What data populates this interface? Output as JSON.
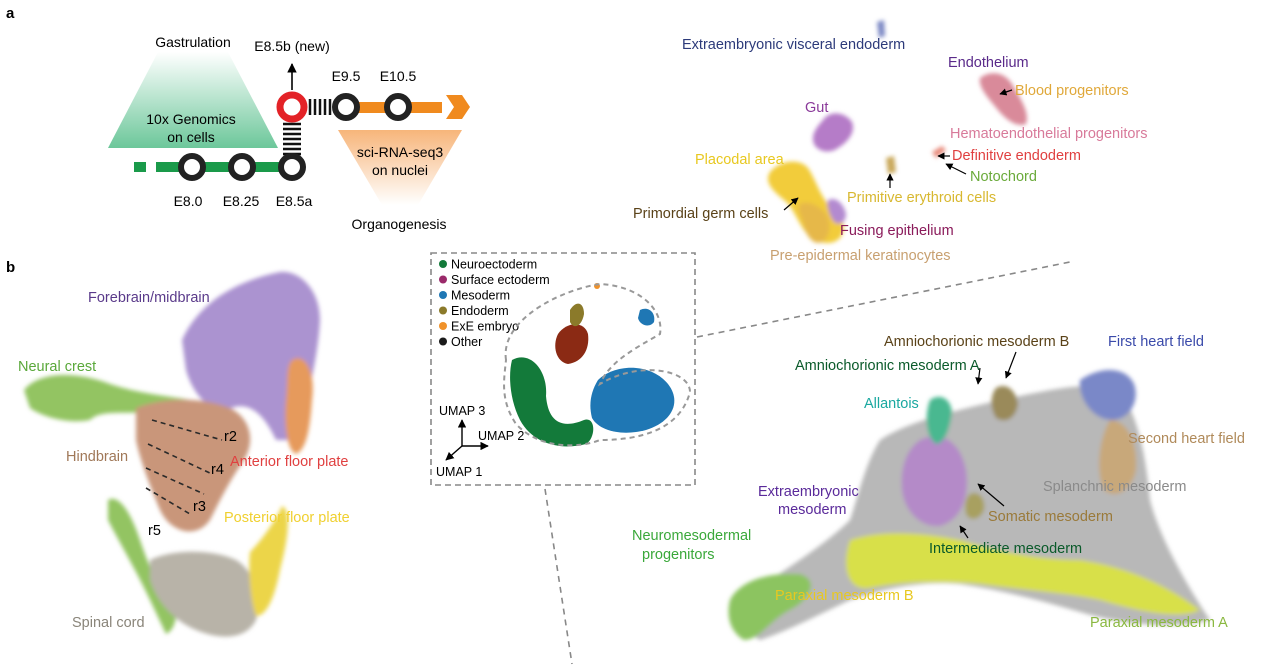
{
  "panels": {
    "a": "a",
    "b": "b"
  },
  "timeline": {
    "gastrulation": "Gastrulation",
    "tenx_line1": "10x Genomics",
    "tenx_line2": "on cells",
    "e85b": "E8.5b (new)",
    "e95": "E9.5",
    "e105": "E10.5",
    "sci_line1": "sci-RNA-seq3",
    "sci_line2": "on nuclei",
    "e80": "E8.0",
    "e825": "E8.25",
    "e85a": "E8.5a",
    "organogenesis": "Organogenesis",
    "colors": {
      "green": "#1a9a4a",
      "orange": "#f08a1e",
      "red": "#e32227",
      "dot": "#222222"
    }
  },
  "cluster_top": {
    "extraembryonic_visceral_endoderm": "Extraembryonic visceral endoderm",
    "endothelium": "Endothelium",
    "blood_progenitors": "Blood progenitors",
    "gut": "Gut",
    "hematoendothelial_progenitors": "Hematoendothelial progenitors",
    "definitive_endoderm": "Definitive endoderm",
    "placodal_area": "Placodal area",
    "notochord": "Notochord",
    "primitive_erythroid_cells": "Primitive erythroid cells",
    "primordial_germ_cells": "Primordial germ cells",
    "fusing_epithelium": "Fusing epithelium",
    "pre_epidermal_keratinocytes": "Pre-epidermal keratinocytes"
  },
  "neuro": {
    "forebrain_midbrain": "Forebrain/midbrain",
    "neural_crest": "Neural crest",
    "hindbrain": "Hindbrain",
    "anterior_floor_plate": "Anterior floor plate",
    "posterior_floor_plate": "Posterior floor plate",
    "spinal_cord": "Spinal cord",
    "r2": "r2",
    "r4": "r4",
    "r3": "r3",
    "r5": "r5"
  },
  "legend": {
    "items": [
      {
        "label": "Neuroectoderm",
        "color": "#137a3a"
      },
      {
        "label": "Surface ectoderm",
        "color": "#9a2a6a"
      },
      {
        "label": "Mesoderm",
        "color": "#1f77b4"
      },
      {
        "label": "Endoderm",
        "color": "#8b7a2a"
      },
      {
        "label": "ExE embryo",
        "color": "#f0922a"
      },
      {
        "label": "Other",
        "color": "#1a1a1a"
      }
    ],
    "umap1": "UMAP 1",
    "umap2": "UMAP 2",
    "umap3": "UMAP 3"
  },
  "meso": {
    "amniochorionic_b": "Amniochorionic mesoderm B",
    "first_heart_field": "First heart field",
    "amniochorionic_a": "Amniochorionic mesoderm A",
    "allantois": "Allantois",
    "second_heart_field": "Second heart field",
    "extraembryonic_line1": "Extraembryonic",
    "extraembryonic_line2": "mesoderm",
    "splanchnic_mesoderm": "Splanchnic mesoderm",
    "somatic_mesoderm": "Somatic mesoderm",
    "neuromesodermal_line1": "Neuromesodermal",
    "neuromesodermal_line2": "progenitors",
    "intermediate_mesoderm": "Intermediate mesoderm",
    "paraxial_b": "Paraxial mesoderm B",
    "paraxial_a": "Paraxial mesoderm A"
  }
}
